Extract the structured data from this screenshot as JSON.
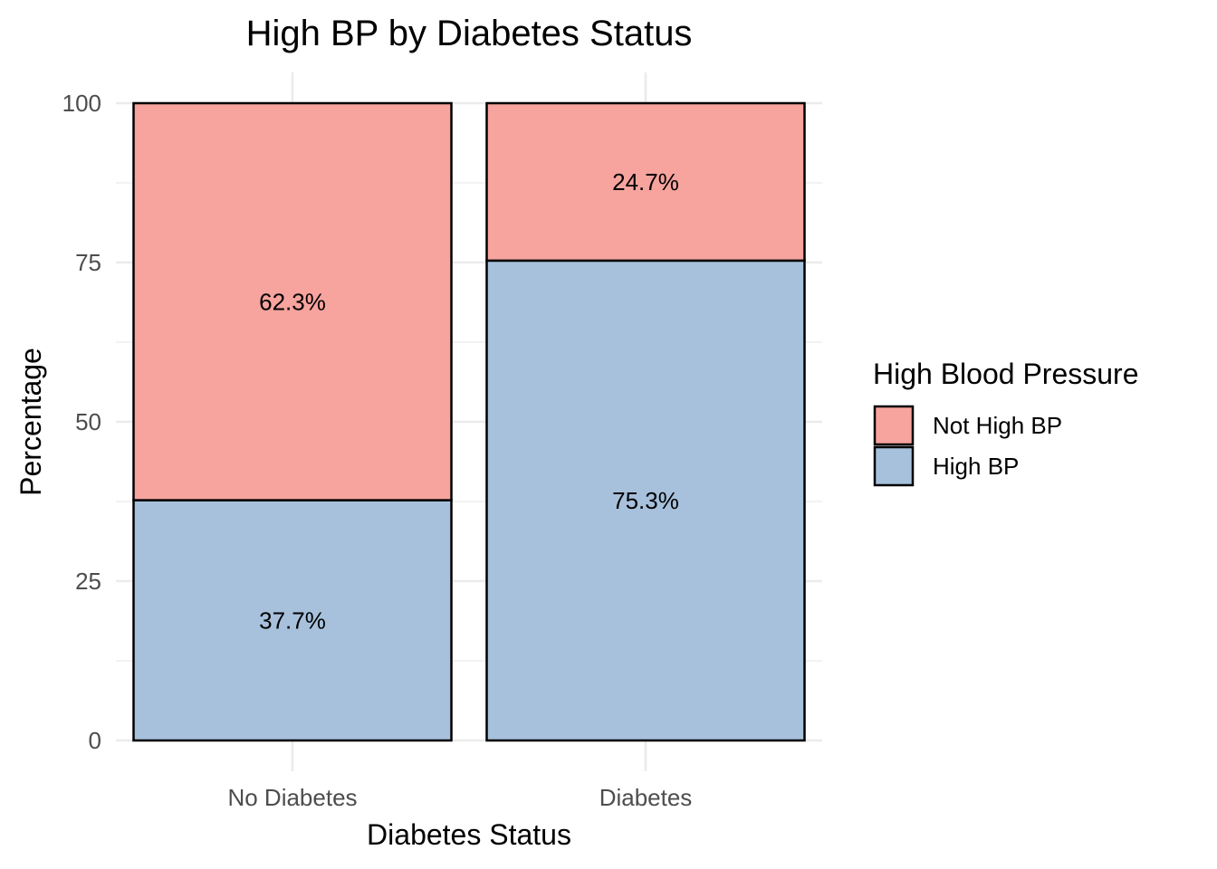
{
  "chart_data": {
    "type": "bar",
    "stacked": true,
    "title": "High BP by Diabetes Status",
    "xlabel": "Diabetes Status",
    "ylabel": "Percentage",
    "categories": [
      "No Diabetes",
      "Diabetes"
    ],
    "ylim": [
      0,
      100
    ],
    "yticks": [
      0,
      25,
      50,
      75,
      100
    ],
    "grid": true,
    "series": [
      {
        "name": "High BP",
        "color": "#A7C1DC",
        "values": [
          37.7,
          75.3
        ],
        "labels": [
          "37.7%",
          "75.3%"
        ]
      },
      {
        "name": "Not High BP",
        "color": "#F7A39E",
        "values": [
          62.3,
          24.7
        ],
        "labels": [
          "62.3%",
          "24.7%"
        ]
      }
    ],
    "legend": {
      "title": "High Blood Pressure",
      "placement": "right",
      "order": [
        "Not High BP",
        "High BP"
      ]
    }
  }
}
